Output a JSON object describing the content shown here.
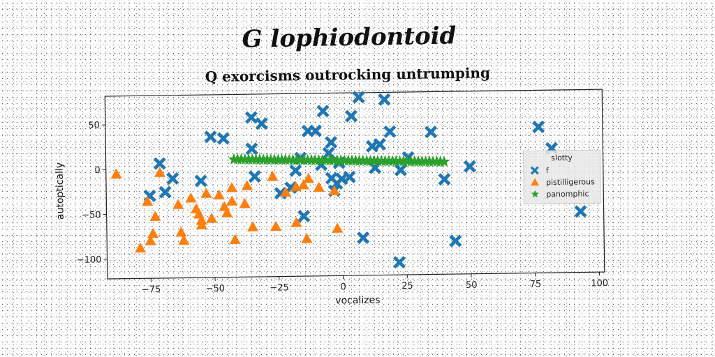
{
  "suptitle": "G lophiodontoid",
  "chart_data": {
    "type": "scatter",
    "title": "Q exorcisms outrocking untrumping",
    "xlabel": "vocalizes",
    "ylabel": "autoptically",
    "xlim": [
      -92,
      102
    ],
    "ylim": [
      -122,
      82
    ],
    "xticks": [
      -75,
      -50,
      -25,
      0,
      25,
      50,
      75,
      100
    ],
    "yticks": [
      50,
      0,
      -50,
      -100
    ],
    "grid": false,
    "legend": {
      "title": "slotty",
      "placement": "right"
    },
    "series": [
      {
        "name": "f",
        "marker": "x",
        "color": "#1f77b4",
        "points": [
          [
            -71,
            6
          ],
          [
            -66,
            -11
          ],
          [
            -75,
            -30
          ],
          [
            -69,
            -26
          ],
          [
            -55,
            -14
          ],
          [
            -51,
            35
          ],
          [
            -46,
            33
          ],
          [
            -35,
            56
          ],
          [
            -31,
            49
          ],
          [
            -35,
            21
          ],
          [
            -34,
            -10
          ],
          [
            -24,
            -29
          ],
          [
            -20,
            -23
          ],
          [
            -18,
            -4
          ],
          [
            -16,
            10
          ],
          [
            -13,
            40
          ],
          [
            -15,
            -55
          ],
          [
            -7,
            62
          ],
          [
            -10,
            40
          ],
          [
            -4,
            27
          ],
          [
            -5,
            15
          ],
          [
            -4,
            -13
          ],
          [
            -2,
            -19
          ],
          [
            -3,
            -27
          ],
          [
            0,
            -14
          ],
          [
            3,
            -12
          ],
          [
            4,
            56
          ],
          [
            7,
            77
          ],
          [
            8,
            -80
          ],
          [
            12,
            22
          ],
          [
            13,
            -2
          ],
          [
            15,
            24
          ],
          [
            17,
            74
          ],
          [
            19,
            38
          ],
          [
            22,
            -108
          ],
          [
            23,
            -5
          ],
          [
            26,
            9
          ],
          [
            35,
            37
          ],
          [
            40,
            -16
          ],
          [
            44,
            -85
          ],
          [
            50,
            -2
          ],
          [
            77,
            41
          ],
          [
            82,
            17
          ],
          [
            93,
            -54
          ],
          [
            -1,
            4
          ],
          [
            -8,
            2
          ]
        ]
      },
      {
        "name": "pistilligerous",
        "marker": "^",
        "color": "#ff7f0e",
        "points": [
          [
            -88,
            -5
          ],
          [
            -79,
            -88
          ],
          [
            -76,
            -36
          ],
          [
            -75,
            -80
          ],
          [
            -74,
            -72
          ],
          [
            -73,
            -53
          ],
          [
            -71,
            -4
          ],
          [
            -64,
            -40
          ],
          [
            -63,
            -71
          ],
          [
            -62,
            -80
          ],
          [
            -59,
            -33
          ],
          [
            -57,
            -45
          ],
          [
            -56,
            -51
          ],
          [
            -55,
            -58
          ],
          [
            -55,
            -63
          ],
          [
            -53,
            -28
          ],
          [
            -51,
            -56
          ],
          [
            -48,
            -30
          ],
          [
            -46,
            -43
          ],
          [
            -45,
            -50
          ],
          [
            -43,
            -37
          ],
          [
            -43,
            -22
          ],
          [
            -42,
            -80
          ],
          [
            -38,
            -40
          ],
          [
            -37,
            -20
          ],
          [
            -35,
            -66
          ],
          [
            -27,
            -10
          ],
          [
            -26,
            -66
          ],
          [
            -22,
            -28
          ],
          [
            -18,
            -22
          ],
          [
            -15,
            -20
          ],
          [
            -14,
            -80
          ],
          [
            -13,
            -13
          ],
          [
            -9,
            -23
          ],
          [
            -3,
            -27
          ],
          [
            -2,
            -69
          ],
          [
            -18,
            -62
          ]
        ]
      },
      {
        "name": "panomphic",
        "marker": "*",
        "color": "#2ca02c",
        "line": {
          "x_from": -42,
          "x_to": 40,
          "y_from": 9.5,
          "y_to": 3.5,
          "count": 58
        }
      }
    ]
  }
}
